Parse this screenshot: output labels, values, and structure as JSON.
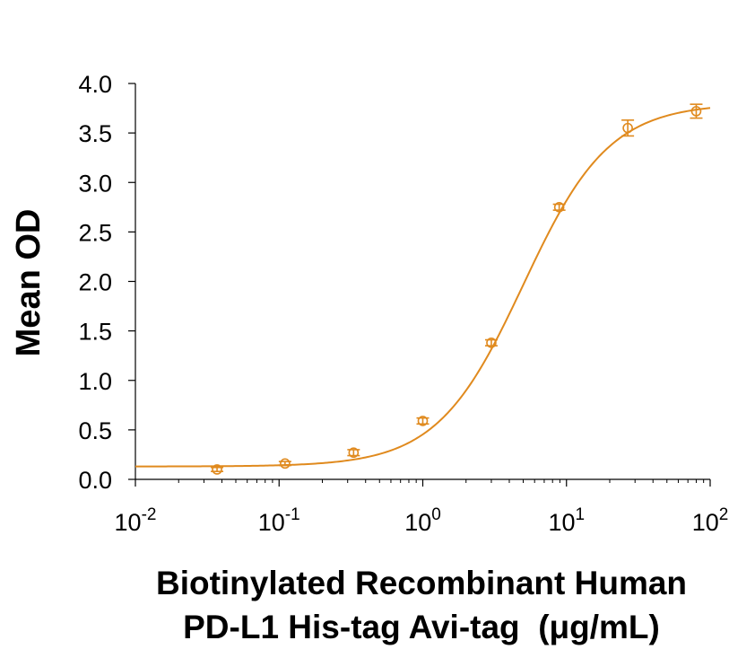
{
  "chart_data": {
    "type": "scatter",
    "title": "",
    "ylabel": "Mean OD",
    "xlabel_lines": [
      "Biotinylated Recombinant Human",
      "PD-L1 His-tag Avi-tag  (μg/mL)"
    ],
    "x_scale": "log",
    "xlim": [
      0.01,
      100
    ],
    "ylim": [
      0,
      4
    ],
    "grid": false,
    "legend": "none",
    "color": "#e08a1e",
    "y_ticks": [
      {
        "value": 0.0,
        "label": "0.0"
      },
      {
        "value": 0.5,
        "label": "0.5"
      },
      {
        "value": 1.0,
        "label": "1.0"
      },
      {
        "value": 1.5,
        "label": "1.5"
      },
      {
        "value": 2.0,
        "label": "2.0"
      },
      {
        "value": 2.5,
        "label": "2.5"
      },
      {
        "value": 3.0,
        "label": "3.0"
      },
      {
        "value": 3.5,
        "label": "3.5"
      },
      {
        "value": 4.0,
        "label": "4.0"
      }
    ],
    "x_ticks": [
      {
        "value": 0.01,
        "base": "10",
        "exp": "-2"
      },
      {
        "value": 0.1,
        "base": "10",
        "exp": "-1"
      },
      {
        "value": 1,
        "base": "10",
        "exp": "0"
      },
      {
        "value": 10,
        "base": "10",
        "exp": "1"
      },
      {
        "value": 100,
        "base": "10",
        "exp": "2"
      }
    ],
    "points": [
      {
        "x": 0.037,
        "y": 0.1,
        "err": 0.02
      },
      {
        "x": 0.11,
        "y": 0.16,
        "err": 0.02
      },
      {
        "x": 0.33,
        "y": 0.27,
        "err": 0.03
      },
      {
        "x": 1.0,
        "y": 0.59,
        "err": 0.03
      },
      {
        "x": 3.0,
        "y": 1.38,
        "err": 0.03
      },
      {
        "x": 8.9,
        "y": 2.75,
        "err": 0.03
      },
      {
        "x": 26.7,
        "y": 3.55,
        "err": 0.08
      },
      {
        "x": 80,
        "y": 3.72,
        "err": 0.07
      }
    ],
    "fit": {
      "model": "4PL",
      "bottom": 0.13,
      "top": 3.8,
      "ec50": 5.0,
      "hill": 1.45
    }
  }
}
